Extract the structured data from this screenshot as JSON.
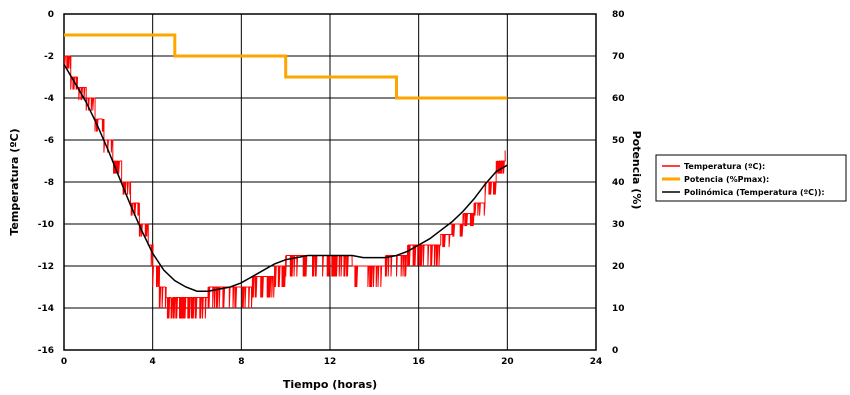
{
  "chart_data": {
    "type": "line",
    "title": "",
    "xlabel": "Tiempo (horas)",
    "ylabel": "Temperatura (ºC)",
    "y2label": "Potencia (%)",
    "xlim": [
      0,
      24
    ],
    "ylim": [
      -16,
      0
    ],
    "y2lim": [
      0,
      80
    ],
    "xticks": [
      0,
      4,
      8,
      12,
      16,
      20,
      24
    ],
    "yticks": [
      0,
      -2,
      -4,
      -6,
      -8,
      -10,
      -12,
      -14,
      -16
    ],
    "y2ticks": [
      80,
      70,
      60,
      50,
      40,
      30,
      20,
      10,
      0
    ],
    "grid": true,
    "legend_position": "right",
    "series": [
      {
        "name": "Temperatura (ºC):",
        "axis": "left",
        "color": "#ff0000",
        "style": "noisy-step",
        "x": [
          0,
          0.3,
          0.6,
          1,
          1.4,
          1.8,
          2.2,
          2.6,
          3,
          3.4,
          3.8,
          4,
          4.3,
          4.6,
          5,
          5.5,
          6,
          6.5,
          7,
          7.5,
          8,
          8.5,
          9,
          9.5,
          10,
          10.5,
          11,
          11.5,
          12,
          12.5,
          13,
          13.5,
          14,
          14.5,
          15,
          15.5,
          16,
          16.5,
          17,
          17.5,
          18,
          18.5,
          19,
          19.5,
          19.9
        ],
        "values": [
          -2,
          -3,
          -3.5,
          -4,
          -5,
          -6,
          -7,
          -8,
          -9,
          -10,
          -11,
          -12,
          -13,
          -13.5,
          -13.5,
          -13.5,
          -13.5,
          -13,
          -13,
          -13,
          -13,
          -12.5,
          -12.5,
          -12,
          -11.5,
          -11.5,
          -11.5,
          -11.5,
          -11.5,
          -11.5,
          -12,
          -12,
          -12,
          -11.5,
          -11.5,
          -11,
          -11,
          -11,
          -10.5,
          -10,
          -9.5,
          -9,
          -8,
          -7,
          -6.5
        ]
      },
      {
        "name": "Potencia (%Pmax):",
        "axis": "right",
        "color": "#ffa500",
        "style": "step",
        "x": [
          0,
          5,
          5,
          10,
          10,
          15,
          15,
          20
        ],
        "values": [
          75,
          75,
          70,
          70,
          65,
          65,
          60,
          60
        ]
      },
      {
        "name": "Polinómica (Temperatura (ºC)):",
        "axis": "left",
        "color": "#000000",
        "style": "smooth",
        "x": [
          0,
          0.5,
          1,
          1.5,
          2,
          2.5,
          3,
          3.5,
          4,
          4.5,
          5,
          5.5,
          6,
          6.5,
          7,
          7.5,
          8,
          8.5,
          9,
          9.5,
          10,
          10.5,
          11,
          11.5,
          12,
          12.5,
          13,
          13.5,
          14,
          14.5,
          15,
          15.5,
          16,
          16.5,
          17,
          17.5,
          18,
          18.5,
          19,
          19.5,
          20
        ],
        "values": [
          -2.4,
          -3.3,
          -4.2,
          -5.3,
          -6.5,
          -7.8,
          -9.1,
          -10.3,
          -11.4,
          -12.2,
          -12.7,
          -13.0,
          -13.2,
          -13.2,
          -13.1,
          -13.0,
          -12.8,
          -12.5,
          -12.2,
          -11.9,
          -11.7,
          -11.6,
          -11.5,
          -11.5,
          -11.5,
          -11.5,
          -11.5,
          -11.6,
          -11.6,
          -11.6,
          -11.5,
          -11.3,
          -11.0,
          -10.7,
          -10.3,
          -9.9,
          -9.4,
          -8.8,
          -8.1,
          -7.5,
          -7.2
        ]
      }
    ]
  }
}
